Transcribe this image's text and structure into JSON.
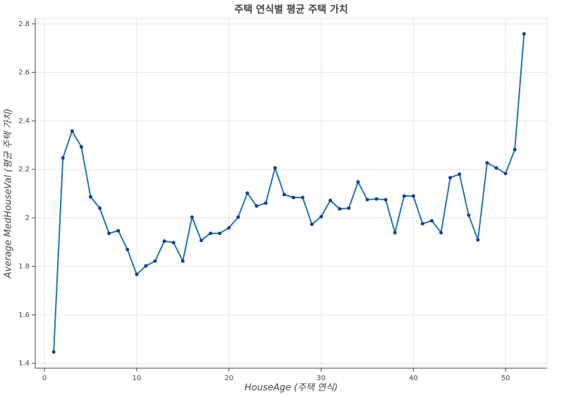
{
  "chart_data": {
    "type": "line",
    "title": "주택 연식별 평균 주택 가치",
    "x_label": "HouseAge (주택 연식)",
    "y_label": "Average MedHouseVal (평균 주택 가치)",
    "x": [
      1,
      2,
      3,
      4,
      5,
      6,
      7,
      8,
      9,
      10,
      11,
      12,
      13,
      14,
      15,
      16,
      17,
      18,
      19,
      20,
      21,
      22,
      23,
      24,
      25,
      26,
      27,
      28,
      29,
      30,
      31,
      32,
      33,
      34,
      35,
      36,
      37,
      38,
      39,
      40,
      41,
      42,
      43,
      44,
      45,
      46,
      47,
      48,
      49,
      50,
      51,
      52
    ],
    "series": [
      {
        "color": "#1f77b4",
        "marker_color": "#1f3b8c",
        "values": [
          1.447,
          2.247,
          2.358,
          2.293,
          2.087,
          2.04,
          1.936,
          1.947,
          1.869,
          1.767,
          1.802,
          1.822,
          1.904,
          1.898,
          1.822,
          2.003,
          1.907,
          1.936,
          1.936,
          1.959,
          2.003,
          2.102,
          2.049,
          2.061,
          2.206,
          2.096,
          2.084,
          2.084,
          1.973,
          2.005,
          2.072,
          2.037,
          2.04,
          2.148,
          2.075,
          2.078,
          2.075,
          1.939,
          2.09,
          2.09,
          1.976,
          1.988,
          1.939,
          2.166,
          2.18,
          2.011,
          1.909,
          2.227,
          2.206,
          2.183,
          2.282,
          2.759
        ]
      }
    ],
    "xlim": [
      -1,
      54.5
    ],
    "ylim": [
      1.38,
      2.823
    ],
    "xticks": [
      0,
      10,
      20,
      30,
      40,
      50
    ],
    "yticks": [
      1.4,
      1.6,
      1.8,
      2,
      2.2,
      2.4,
      2.6,
      2.8
    ],
    "grid": true
  }
}
